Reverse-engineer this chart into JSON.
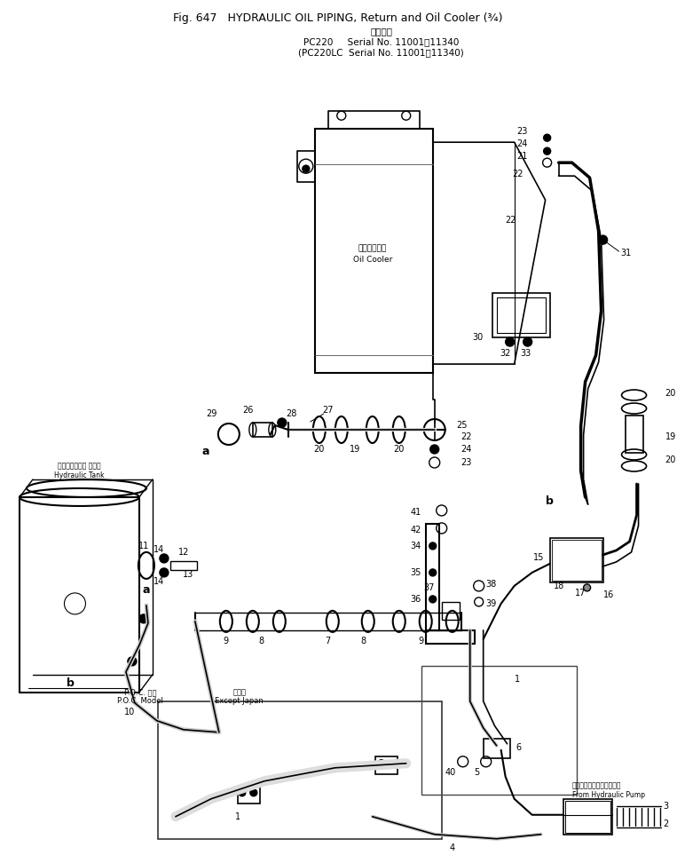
{
  "title_line1": "Fig. 647   HYDRAULIC OIL PIPING, Return and Oil Cooler (¾)",
  "title_line2_jp": "適用号機",
  "title_line3": "PC220     Serial No. 11001～11340",
  "title_line4": "(PC220LC  Serial No. 11001～11340)",
  "bg_color": "#ffffff",
  "lc": "#000000",
  "tc": "#000000",
  "fig_width": 7.63,
  "fig_height": 9.72,
  "dpi": 100
}
